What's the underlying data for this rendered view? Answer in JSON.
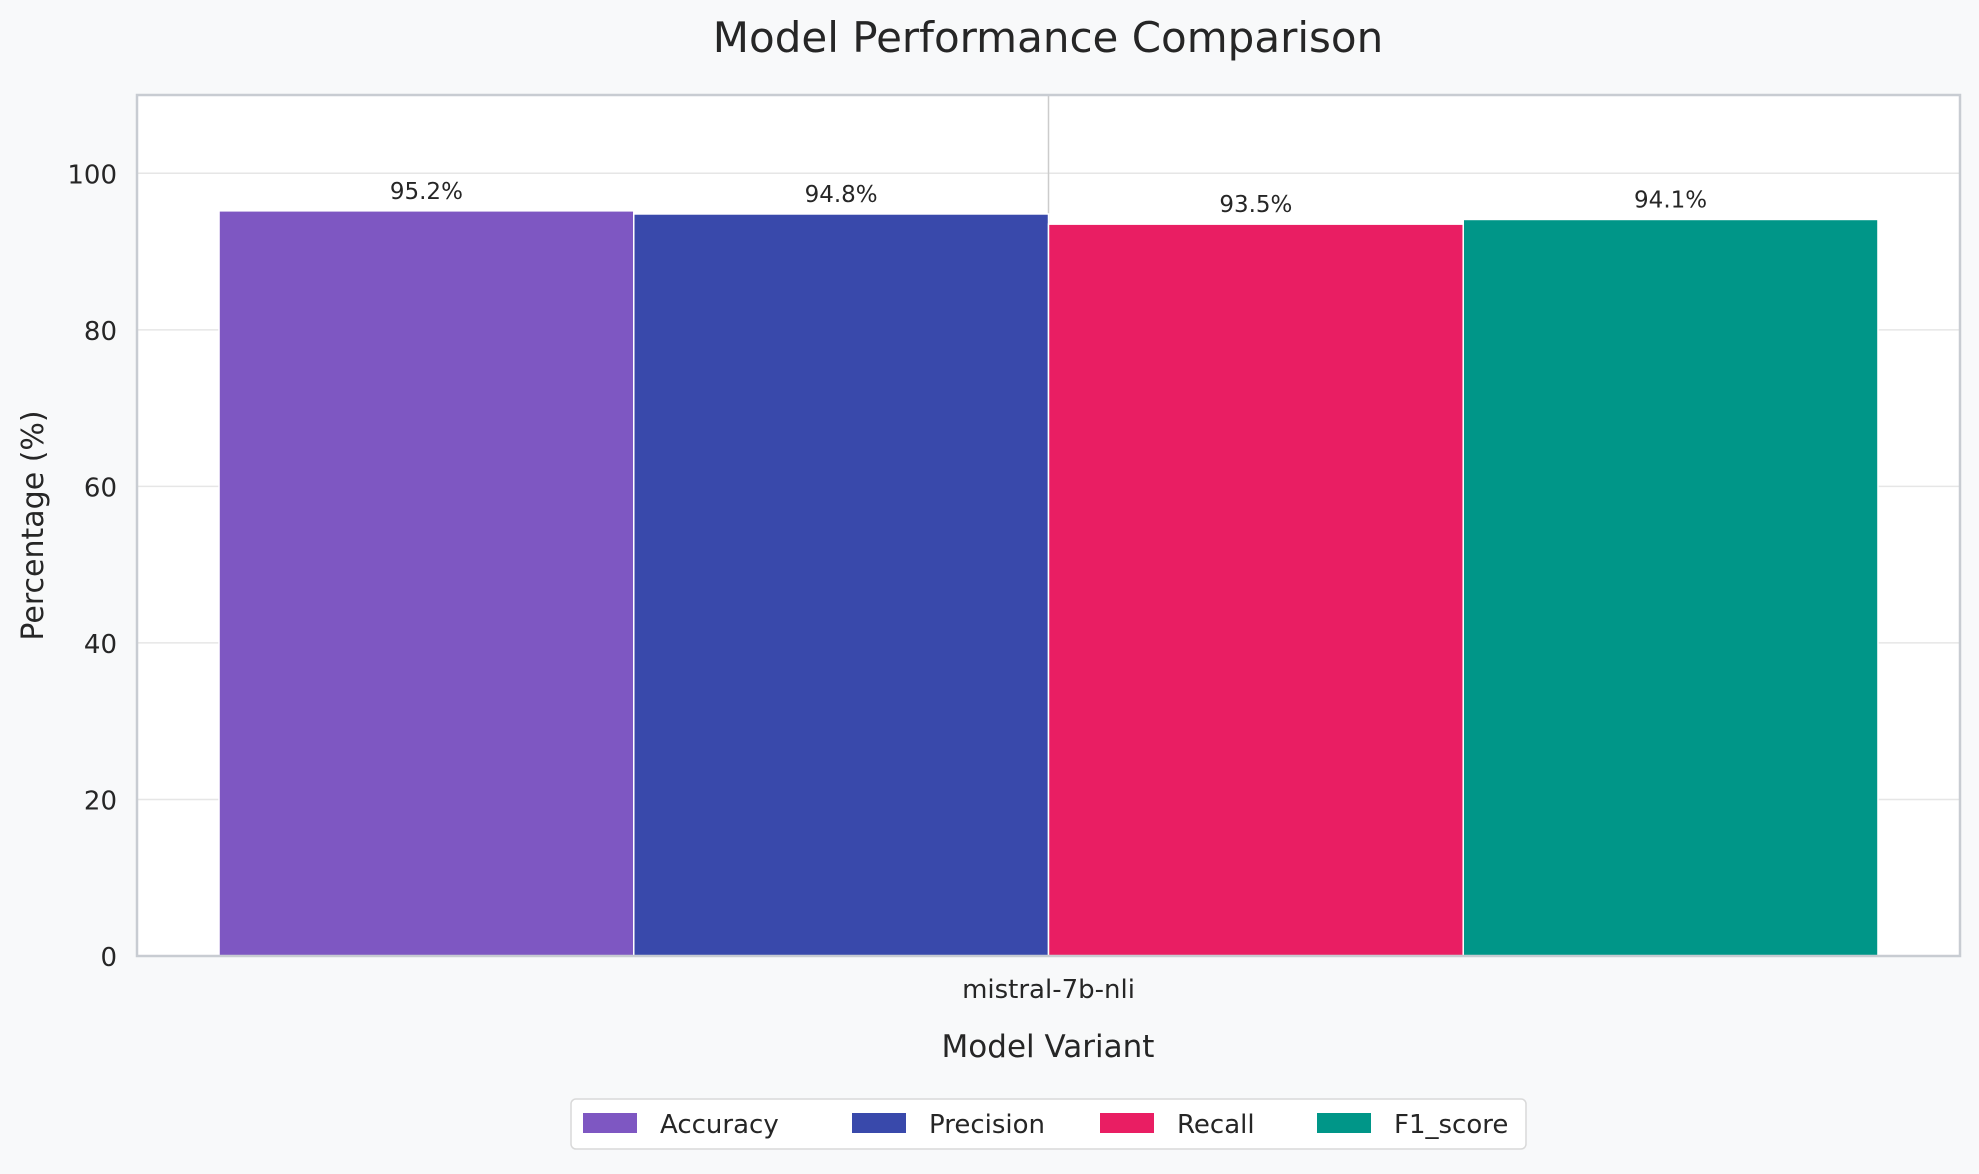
{
  "chart_data": {
    "type": "bar",
    "title": "Model Performance Comparison",
    "xlabel": "Model Variant",
    "ylabel": "Percentage (%)",
    "categories": [
      "mistral-7b-nli"
    ],
    "ylim": [
      0,
      110
    ],
    "yticks": [
      0,
      20,
      40,
      60,
      80,
      100
    ],
    "grid": true,
    "legend_placement": "bottom-center",
    "series": [
      {
        "name": "Accuracy",
        "values": [
          95.2
        ],
        "label": "95.2%",
        "color": "#7e57c2"
      },
      {
        "name": "Precision",
        "values": [
          94.8
        ],
        "label": "94.8%",
        "color": "#3949ab"
      },
      {
        "name": "Recall",
        "values": [
          93.5
        ],
        "label": "93.5%",
        "color": "#e91e63"
      },
      {
        "name": "F1_score",
        "values": [
          94.1
        ],
        "label": "94.1%",
        "color": "#009688"
      }
    ]
  }
}
